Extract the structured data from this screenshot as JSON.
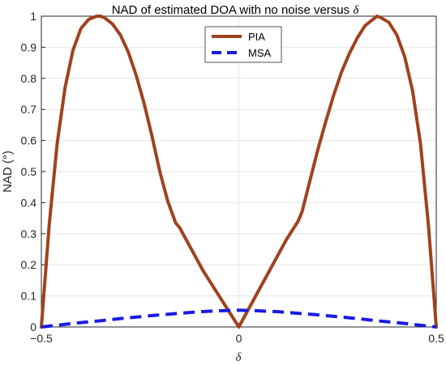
{
  "chart_data": {
    "type": "line",
    "title": "NAD of estimated DOA with no noise versus",
    "title_symbol": "δ",
    "xlabel": "δ",
    "ylabel": "NAD (°)",
    "xlim": [
      -0.5,
      0.5
    ],
    "ylim": [
      0,
      1
    ],
    "xticks": [
      -0.5,
      0,
      0.5
    ],
    "xtick_labels": [
      "−0.5",
      "0",
      "0.5"
    ],
    "yticks": [
      0,
      0.1,
      0.2,
      0.3,
      0.4,
      0.5,
      0.6,
      0.7,
      0.8,
      0.9,
      1
    ],
    "ytick_labels": [
      "0",
      "0.1",
      "0.2",
      "0.3",
      "0.4",
      "0.5",
      "0.6",
      "0.7",
      "0.8",
      "0.9",
      "1"
    ],
    "grid": true,
    "legend_position": "top-center",
    "series": [
      {
        "name": "PIA",
        "style": "solid",
        "color": "#a0421e",
        "x": [
          -0.5,
          -0.48,
          -0.46,
          -0.44,
          -0.42,
          -0.4,
          -0.38,
          -0.36,
          -0.35,
          -0.34,
          -0.32,
          -0.3,
          -0.28,
          -0.26,
          -0.24,
          -0.22,
          -0.2,
          -0.18,
          -0.16,
          -0.15,
          -0.12,
          -0.09,
          -0.06,
          -0.03,
          0,
          0.03,
          0.06,
          0.09,
          0.12,
          0.15,
          0.16,
          0.18,
          0.2,
          0.22,
          0.24,
          0.26,
          0.28,
          0.3,
          0.32,
          0.34,
          0.35,
          0.36,
          0.38,
          0.4,
          0.42,
          0.44,
          0.46,
          0.48,
          0.5
        ],
        "y": [
          0,
          0.33,
          0.59,
          0.77,
          0.89,
          0.96,
          0.99,
          1.0,
          1.0,
          0.995,
          0.975,
          0.94,
          0.885,
          0.81,
          0.72,
          0.615,
          0.5,
          0.405,
          0.335,
          0.32,
          0.25,
          0.18,
          0.12,
          0.06,
          0,
          0.07,
          0.14,
          0.21,
          0.28,
          0.34,
          0.37,
          0.47,
          0.57,
          0.66,
          0.745,
          0.82,
          0.88,
          0.93,
          0.97,
          0.99,
          1.0,
          0.995,
          0.98,
          0.94,
          0.87,
          0.76,
          0.59,
          0.33,
          0
        ]
      },
      {
        "name": "MSA",
        "style": "dashed",
        "color": "#1a1ae6",
        "x": [
          -0.5,
          -0.45,
          -0.4,
          -0.35,
          -0.3,
          -0.25,
          -0.2,
          -0.15,
          -0.1,
          -0.05,
          0,
          0.05,
          0.1,
          0.15,
          0.2,
          0.25,
          0.3,
          0.35,
          0.4,
          0.45,
          0.5
        ],
        "y": [
          0,
          0.007,
          0.014,
          0.02,
          0.027,
          0.033,
          0.039,
          0.044,
          0.049,
          0.052,
          0.054,
          0.052,
          0.049,
          0.044,
          0.039,
          0.033,
          0.027,
          0.02,
          0.014,
          0.007,
          0
        ]
      }
    ]
  }
}
